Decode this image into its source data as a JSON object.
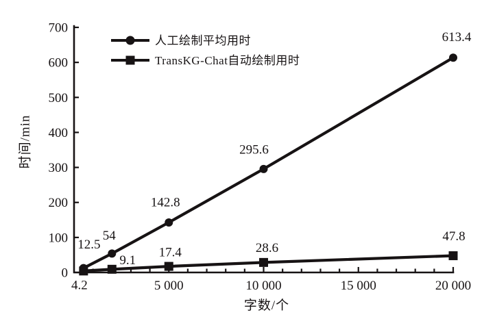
{
  "figure": {
    "background": "#ffffff",
    "ink_color": "#171314"
  },
  "legend": {
    "position": "top-left-inside",
    "items": [
      {
        "label": "人工绘制平均用时",
        "marker": "circle"
      },
      {
        "label": "TransKG-Chat自动绘制用时",
        "marker": "square"
      }
    ]
  },
  "chart_data": {
    "type": "line",
    "title": "",
    "xlabel": "字数/个",
    "ylabel": "时间/min",
    "xlim": [
      0,
      20000
    ],
    "ylim": [
      0,
      700
    ],
    "grid": false,
    "legend_position": "top-left-inside",
    "x": [
      500,
      2000,
      5000,
      10000,
      20000
    ],
    "series": [
      {
        "name": "人工绘制平均用时",
        "marker": "circle",
        "values": [
          12.5,
          54,
          142.8,
          295.6,
          613.4
        ],
        "point_labels": [
          "12.5",
          "54",
          "142.8",
          "295.6",
          "613.4"
        ],
        "label_offsets": [
          [
            8,
            -35
          ],
          [
            -4,
            -27
          ],
          [
            -5,
            -30
          ],
          [
            -14,
            -29
          ],
          [
            5,
            -31
          ]
        ]
      },
      {
        "name": "TransKG-Chat自动绘制用时",
        "marker": "square",
        "values": [
          4.2,
          9.1,
          17.4,
          28.6,
          47.8
        ],
        "point_labels": [
          "4.2",
          "9.1",
          "17.4",
          "28.6",
          "47.8"
        ],
        "label_offsets": [
          [
            -6,
            20
          ],
          [
            23,
            -14
          ],
          [
            2,
            -21
          ],
          [
            5,
            -22
          ],
          [
            1,
            -29
          ]
        ]
      }
    ],
    "x_major_ticks": [
      5000,
      10000,
      15000,
      20000
    ],
    "x_major_tick_labels": [
      "5 000",
      "10 000",
      "15 000",
      "20 000"
    ],
    "x_minor_tick_step": 1000,
    "y_ticks": [
      0,
      100,
      200,
      300,
      400,
      500,
      600,
      700
    ],
    "y_tick_labels": [
      "0",
      "100",
      "200",
      "300",
      "400",
      "500",
      "600",
      "700"
    ]
  }
}
